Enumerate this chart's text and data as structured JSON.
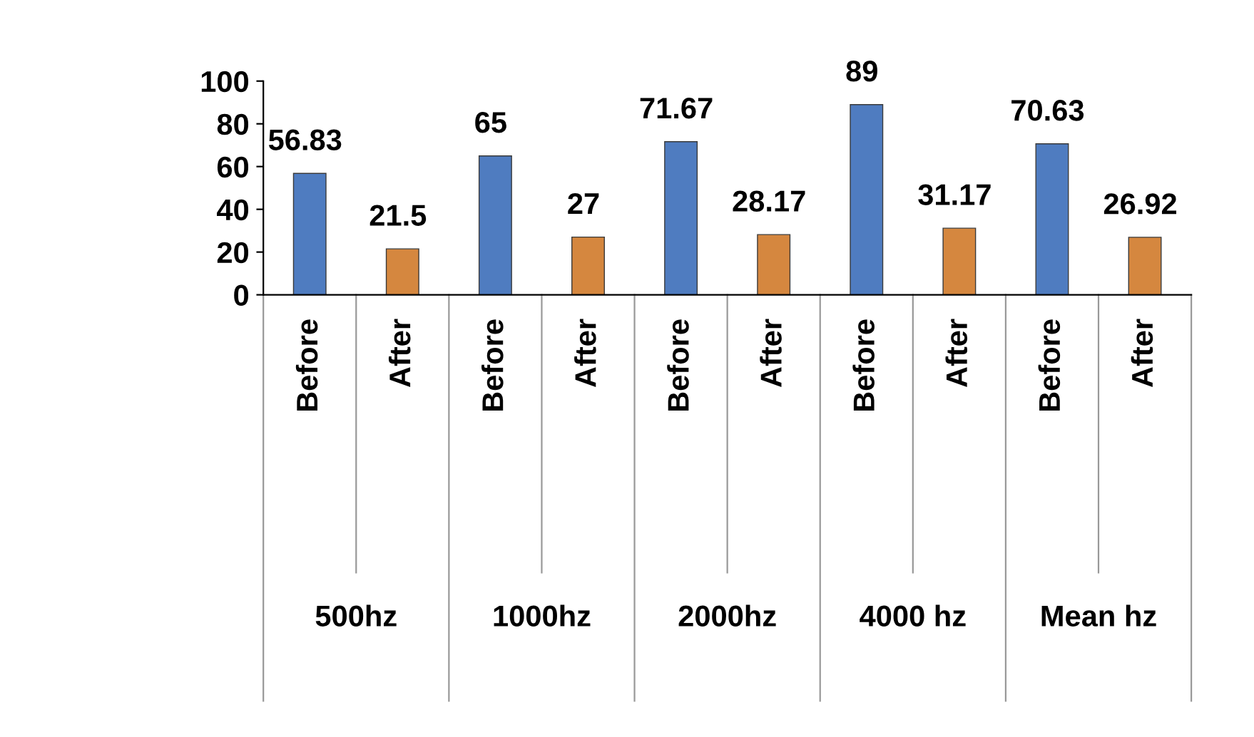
{
  "chart_data": {
    "type": "bar",
    "categories": [
      "Before",
      "After",
      "Before",
      "After",
      "Before",
      "After",
      "Before",
      "After",
      "Before",
      "After"
    ],
    "values": [
      56.83,
      21.5,
      65,
      27,
      71.67,
      28.17,
      89,
      31.17,
      70.63,
      26.92
    ],
    "colors": [
      "#4f7cc0",
      "#d5873f",
      "#4f7cc0",
      "#d5873f",
      "#4f7cc0",
      "#d5873f",
      "#4f7cc0",
      "#d5873f",
      "#4f7cc0",
      "#d5873f"
    ],
    "ylim": [
      0,
      100
    ],
    "yticks": [
      0,
      20,
      40,
      60,
      80,
      100
    ],
    "data_labels": true,
    "grid": false,
    "annotations": [
      "500hz",
      "1000hz",
      "2000hz",
      "4000 hz",
      "Mean hz"
    ]
  }
}
